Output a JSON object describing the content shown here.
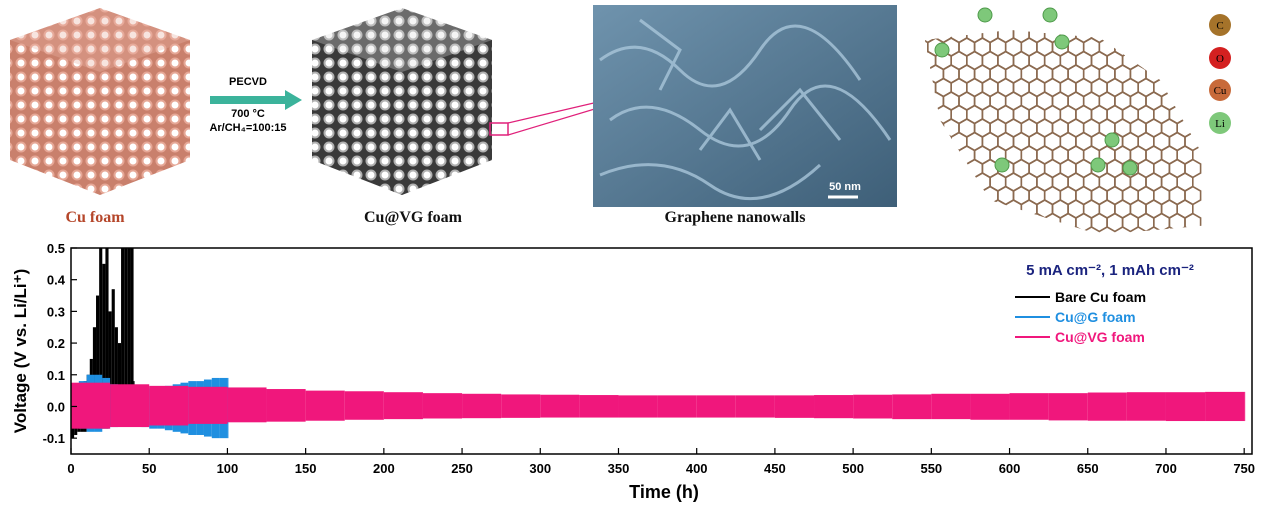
{
  "figure": {
    "cu_foam_label": "Cu foam",
    "process": [
      "PECVD",
      "700 °C",
      "Ar/CH₄=100:15"
    ],
    "vg_foam_label": "Cu@VG foam",
    "sem_label": "Graphene nanowalls",
    "scale_bar": "50 nm",
    "atom_legend": [
      "C",
      "O",
      "Cu",
      "Li"
    ]
  },
  "chart_data": {
    "type": "band",
    "x_label": "Time (h)",
    "y_label": "Voltage (V vs. Li/Li⁺)",
    "annotation": "5 mA cm⁻², 1 mAh cm⁻²",
    "xlim": [
      0,
      755
    ],
    "xticks": [
      0,
      50,
      100,
      150,
      200,
      250,
      300,
      350,
      400,
      450,
      500,
      550,
      600,
      650,
      700,
      750
    ],
    "ylim": [
      -0.15,
      0.5
    ],
    "yticks": [
      -0.1,
      {
        "value": 0,
        "label": "0.0"
      },
      0.1,
      0.2,
      0.3,
      0.4,
      0.5
    ],
    "series": [
      {
        "name": "Bare Cu foam",
        "color": "#000000",
        "x": [
          0,
          2,
          4,
          6,
          8,
          10,
          12,
          14,
          16,
          18,
          20,
          22,
          24,
          26,
          28,
          30,
          32,
          34,
          36,
          38,
          40
        ],
        "upper": [
          0.07,
          0.06,
          0.06,
          0.07,
          0.08,
          0.1,
          0.15,
          0.25,
          0.35,
          0.5,
          0.45,
          0.5,
          0.3,
          0.37,
          0.25,
          0.2,
          0.5,
          0.5,
          0.5,
          0.5,
          0.08
        ],
        "lower": [
          -0.1,
          -0.09,
          -0.08,
          -0.08,
          -0.08,
          -0.07,
          -0.07,
          -0.07,
          -0.07,
          -0.07,
          -0.07,
          -0.07,
          -0.06,
          -0.06,
          -0.06,
          -0.06,
          -0.06,
          -0.06,
          -0.05,
          -0.05,
          -0.05
        ]
      },
      {
        "name": "Cu@G foam",
        "color": "#1f8fe0",
        "x": [
          0,
          5,
          10,
          15,
          20,
          25,
          30,
          35,
          40,
          45,
          50,
          55,
          60,
          65,
          70,
          75,
          80,
          85,
          90,
          95,
          100
        ],
        "upper": [
          0.07,
          0.08,
          0.1,
          0.1,
          0.09,
          0.07,
          0.06,
          0.06,
          0.055,
          0.055,
          0.06,
          0.06,
          0.065,
          0.07,
          0.075,
          0.08,
          0.08,
          0.085,
          0.09,
          0.09,
          0.09
        ],
        "lower": [
          -0.05,
          -0.07,
          -0.08,
          -0.08,
          -0.07,
          -0.065,
          -0.06,
          -0.06,
          -0.06,
          -0.065,
          -0.07,
          -0.07,
          -0.075,
          -0.08,
          -0.085,
          -0.09,
          -0.09,
          -0.095,
          -0.1,
          -0.1,
          -0.1
        ]
      },
      {
        "name": "Cu@VG foam",
        "color": "#f0177c",
        "x": [
          0,
          25,
          50,
          75,
          100,
          125,
          150,
          175,
          200,
          225,
          250,
          275,
          300,
          325,
          350,
          375,
          400,
          425,
          450,
          475,
          500,
          525,
          550,
          575,
          600,
          625,
          650,
          675,
          700,
          725,
          750
        ],
        "upper": [
          0.075,
          0.07,
          0.065,
          0.062,
          0.06,
          0.055,
          0.05,
          0.048,
          0.045,
          0.042,
          0.04,
          0.038,
          0.037,
          0.036,
          0.035,
          0.035,
          0.035,
          0.035,
          0.035,
          0.036,
          0.037,
          0.038,
          0.04,
          0.04,
          0.042,
          0.042,
          0.044,
          0.045,
          0.045,
          0.046,
          0.046
        ],
        "lower": [
          -0.07,
          -0.065,
          -0.06,
          -0.055,
          -0.05,
          -0.048,
          -0.045,
          -0.042,
          -0.04,
          -0.038,
          -0.037,
          -0.036,
          -0.035,
          -0.035,
          -0.035,
          -0.035,
          -0.035,
          -0.035,
          -0.036,
          -0.037,
          -0.038,
          -0.04,
          -0.04,
          -0.042,
          -0.042,
          -0.044,
          -0.045,
          -0.045,
          -0.046,
          -0.046,
          -0.046
        ]
      }
    ]
  }
}
